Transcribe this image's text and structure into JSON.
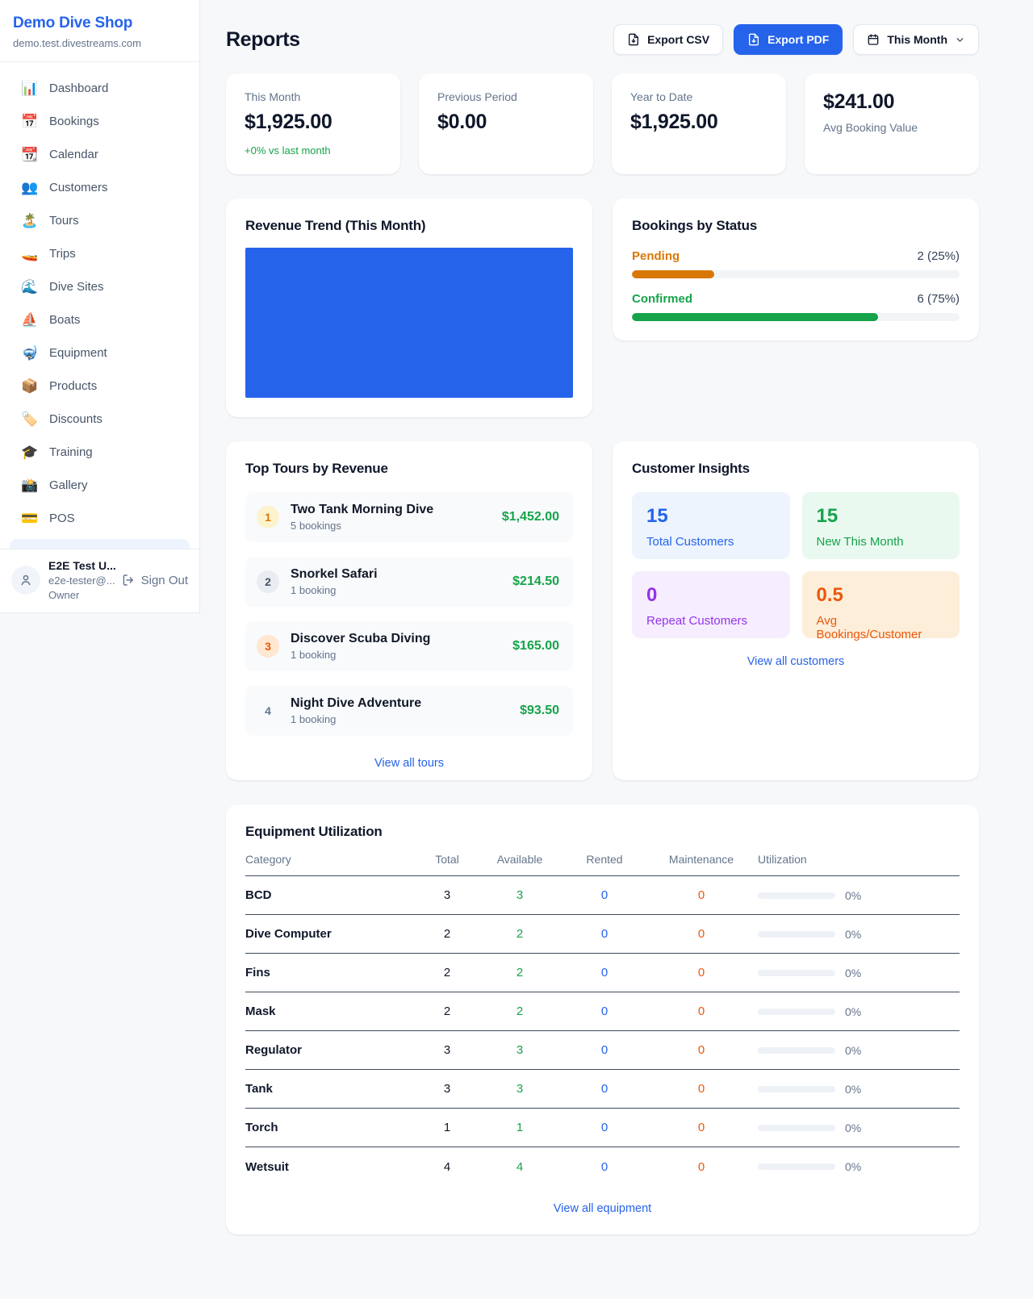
{
  "colors": {
    "accent": "#2563eb",
    "green": "#16a34a",
    "orange": "#d97706",
    "deep_orange": "#ea580c",
    "purple": "#9333ea"
  },
  "sidebar": {
    "title": "Demo Dive Shop",
    "subtitle": "demo.test.divestreams.com",
    "nav": [
      {
        "icon_name": "bar-chart",
        "icon": "📊",
        "label": "Dashboard"
      },
      {
        "icon_name": "calendar-date",
        "icon": "📅",
        "label": "Bookings"
      },
      {
        "icon_name": "tear-off-calendar",
        "icon": "📆",
        "label": "Calendar"
      },
      {
        "icon_name": "people",
        "icon": "👥",
        "label": "Customers"
      },
      {
        "icon_name": "desert-island",
        "icon": "🏝️",
        "label": "Tours"
      },
      {
        "icon_name": "speedboat",
        "icon": "🚤",
        "label": "Trips"
      },
      {
        "icon_name": "wave",
        "icon": "🌊",
        "label": "Dive Sites"
      },
      {
        "icon_name": "sailboat",
        "icon": "⛵",
        "label": "Boats"
      },
      {
        "icon_name": "diving-mask",
        "icon": "🤿",
        "label": "Equipment"
      },
      {
        "icon_name": "package",
        "icon": "📦",
        "label": "Products"
      },
      {
        "icon_name": "label-tag",
        "icon": "🏷️",
        "label": "Discounts"
      },
      {
        "icon_name": "graduation-cap",
        "icon": "🎓",
        "label": "Training"
      },
      {
        "icon_name": "camera-flash",
        "icon": "📸",
        "label": "Gallery"
      },
      {
        "icon_name": "credit-card",
        "icon": "💳",
        "label": "POS"
      }
    ],
    "user": {
      "name": "E2E Test U...",
      "email": "e2e-tester@...",
      "role": "Owner",
      "sign_out_label": "Sign Out"
    }
  },
  "header": {
    "title": "Reports",
    "export_csv_label": "Export CSV",
    "export_pdf_label": "Export PDF",
    "period_label": "This Month"
  },
  "stats": [
    {
      "label": "This Month",
      "value": "$1,925.00",
      "change": "+0% vs last month"
    },
    {
      "label": "Previous Period",
      "value": "$0.00"
    },
    {
      "label": "Year to Date",
      "value": "$1,925.00"
    },
    {
      "label": "Avg Booking Value",
      "value": "$241.00",
      "value_first": true
    }
  ],
  "revenue_trend": {
    "title": "Revenue Trend (This Month)",
    "chart": {
      "type": "bar",
      "fill_color": "#2563eb",
      "fill_percent": 100
    }
  },
  "bookings_by_status": {
    "title": "Bookings by Status",
    "rows": [
      {
        "label": "Pending",
        "value": "2 (25%)",
        "count": 2,
        "percent": 25,
        "color": "#d97706"
      },
      {
        "label": "Confirmed",
        "value": "6 (75%)",
        "count": 6,
        "percent": 75,
        "color": "#16a34a"
      }
    ]
  },
  "top_tours": {
    "title": "Top Tours by Revenue",
    "items": [
      {
        "rank": "1",
        "tier": "gold",
        "name": "Two Tank Morning Dive",
        "sub": "5 bookings",
        "amount": "$1,452.00"
      },
      {
        "rank": "2",
        "tier": "silver",
        "name": "Snorkel Safari",
        "sub": "1 booking",
        "amount": "$214.50"
      },
      {
        "rank": "3",
        "tier": "bronze",
        "name": "Discover Scuba Diving",
        "sub": "1 booking",
        "amount": "$165.00"
      },
      {
        "rank": "4",
        "tier": "plain",
        "name": "Night Dive Adventure",
        "sub": "1 booking",
        "amount": "$93.50"
      }
    ],
    "view_all": "View all tours"
  },
  "customer_insights": {
    "title": "Customer Insights",
    "cards": [
      {
        "value": "15",
        "label": "Total Customers",
        "bg": "#edf4fe",
        "color": "#2563eb"
      },
      {
        "value": "15",
        "label": "New This Month",
        "bg": "#e9f9f0",
        "color": "#16a34a"
      },
      {
        "value": "0",
        "label": "Repeat Customers",
        "bg": "#f6eefe",
        "color": "#9333ea"
      },
      {
        "value": "0.5",
        "label": "Avg Bookings/Customer",
        "bg": "#fdeed9",
        "color": "#ea580c"
      }
    ],
    "view_all": "View all customers"
  },
  "equipment": {
    "title": "Equipment Utilization",
    "columns": [
      "Category",
      "Total",
      "Available",
      "Rented",
      "Maintenance",
      "Utilization"
    ],
    "rows": [
      {
        "category": "BCD",
        "total": "3",
        "available": "3",
        "rented": "0",
        "maintenance": "0",
        "utilization_percent": 0,
        "utilization_label": "0%"
      },
      {
        "category": "Dive Computer",
        "total": "2",
        "available": "2",
        "rented": "0",
        "maintenance": "0",
        "utilization_percent": 0,
        "utilization_label": "0%"
      },
      {
        "category": "Fins",
        "total": "2",
        "available": "2",
        "rented": "0",
        "maintenance": "0",
        "utilization_percent": 0,
        "utilization_label": "0%"
      },
      {
        "category": "Mask",
        "total": "2",
        "available": "2",
        "rented": "0",
        "maintenance": "0",
        "utilization_percent": 0,
        "utilization_label": "0%"
      },
      {
        "category": "Regulator",
        "total": "3",
        "available": "3",
        "rented": "0",
        "maintenance": "0",
        "utilization_percent": 0,
        "utilization_label": "0%"
      },
      {
        "category": "Tank",
        "total": "3",
        "available": "3",
        "rented": "0",
        "maintenance": "0",
        "utilization_percent": 0,
        "utilization_label": "0%"
      },
      {
        "category": "Torch",
        "total": "1",
        "available": "1",
        "rented": "0",
        "maintenance": "0",
        "utilization_percent": 0,
        "utilization_label": "0%"
      },
      {
        "category": "Wetsuit",
        "total": "4",
        "available": "4",
        "rented": "0",
        "maintenance": "0",
        "utilization_percent": 0,
        "utilization_label": "0%"
      }
    ],
    "cell_colors": {
      "total": "#0f172a",
      "available": "#16a34a",
      "rented": "#2563eb",
      "maintenance": "#ea580c"
    },
    "view_all": "View all equipment"
  }
}
